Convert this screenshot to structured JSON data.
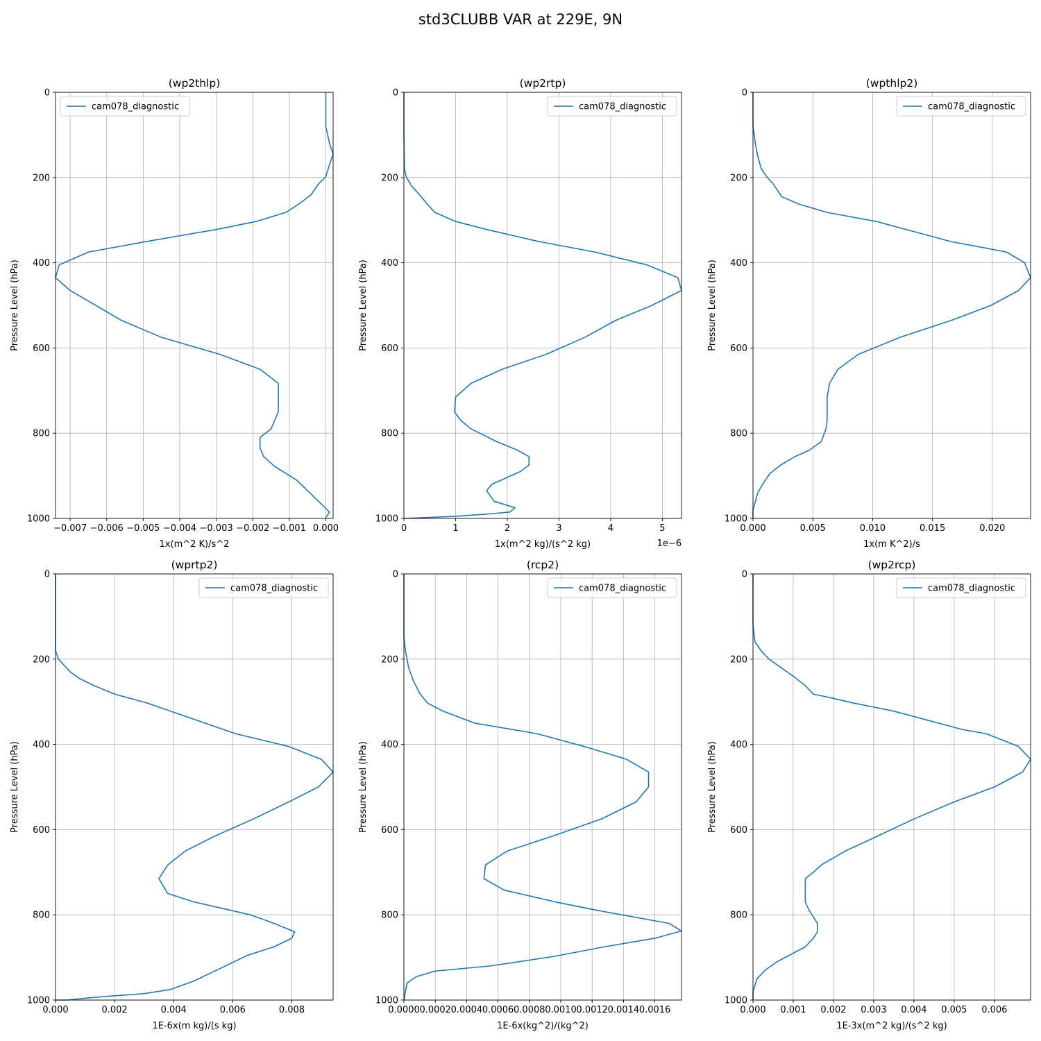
{
  "figure": {
    "title": "std3CLUBB VAR at 229E, 9N"
  },
  "chart_data": [
    {
      "type": "line",
      "title": "(wp2thlp)",
      "xlabel": "1x(m^2 K)/s^2",
      "ylabel": "Pressure Level (hPa)",
      "xlim": [
        -0.0074,
        0.0002
      ],
      "ylim": [
        1000,
        0
      ],
      "xticks": [
        -0.007,
        -0.006,
        -0.005,
        -0.004,
        -0.003,
        -0.002,
        -0.001,
        0.0
      ],
      "xticklabels": [
        "−0.007",
        "−0.006",
        "−0.005",
        "−0.004",
        "−0.003",
        "−0.002",
        "−0.001",
        "0.000"
      ],
      "yticks": [
        0,
        200,
        400,
        600,
        800,
        1000
      ],
      "yticklabels": [
        "0",
        "200",
        "400",
        "600",
        "800",
        "1000"
      ],
      "x_offset_label": "",
      "grid": true,
      "legend_position": "upper-left",
      "series": [
        {
          "name": "cam078_diagnostic",
          "color": "#1f77b4",
          "x": [
            0.0,
            0.0,
            0.0,
            0.0001,
            0.0002,
            0.0001,
            0.0,
            -0.0002,
            -0.0004,
            -0.0007,
            -0.0011,
            -0.0019,
            -0.003,
            -0.0049,
            -0.0065,
            -0.0073,
            -0.0074,
            -0.007,
            -0.0063,
            -0.0056,
            -0.0045,
            -0.0029,
            -0.0018,
            -0.0013,
            -0.0013,
            -0.0013,
            -0.0015,
            -0.0018,
            -0.0018,
            -0.0017,
            -0.0014,
            -0.0008,
            -0.0005,
            -0.0002,
            0.0001,
            0.0
          ],
          "y": [
            0,
            50,
            80,
            120,
            145,
            170,
            198,
            215,
            240,
            260,
            282,
            303,
            322,
            350,
            375,
            405,
            435,
            465,
            500,
            535,
            575,
            615,
            650,
            683,
            715,
            750,
            790,
            810,
            835,
            855,
            878,
            910,
            935,
            960,
            985,
            998
          ]
        }
      ]
    },
    {
      "type": "line",
      "title": "(wp2rtp)",
      "xlabel": "1x(m^2 kg)/(s^2 kg)",
      "ylabel": "Pressure Level (hPa)",
      "xlim": [
        0,
        5.37
      ],
      "ylim": [
        1000,
        0
      ],
      "xticks": [
        0,
        1,
        2,
        3,
        4,
        5
      ],
      "xticklabels": [
        "0",
        "1",
        "2",
        "3",
        "4",
        "5"
      ],
      "yticks": [
        0,
        200,
        400,
        600,
        800,
        1000
      ],
      "yticklabels": [
        "0",
        "200",
        "400",
        "600",
        "800",
        "1000"
      ],
      "x_offset_label": "1e−6",
      "grid": true,
      "legend_position": "upper-right",
      "series": [
        {
          "name": "cam078_diagnostic",
          "color": "#1f77b4",
          "x": [
            0.0,
            0.0,
            0.01,
            0.05,
            0.15,
            0.3,
            0.45,
            0.6,
            1.0,
            1.6,
            2.6,
            3.7,
            4.7,
            5.3,
            5.37,
            4.8,
            4.1,
            3.5,
            2.75,
            1.9,
            1.3,
            1.0,
            0.98,
            1.1,
            1.3,
            1.8,
            2.2,
            2.42,
            2.42,
            2.25,
            1.7,
            1.6,
            1.75,
            2.15,
            2.05,
            1.6,
            1.0,
            0.0
          ],
          "y": [
            0,
            100,
            180,
            200,
            220,
            240,
            262,
            282,
            303,
            322,
            350,
            375,
            405,
            435,
            465,
            500,
            535,
            575,
            615,
            650,
            683,
            715,
            750,
            770,
            790,
            820,
            840,
            855,
            875,
            890,
            920,
            935,
            960,
            975,
            985,
            990,
            995,
            1000
          ]
        }
      ]
    },
    {
      "type": "line",
      "title": "(wpthlp2)",
      "xlabel": "1x(m K^2)/s",
      "ylabel": "Pressure Level (hPa)",
      "xlim": [
        0,
        0.0232
      ],
      "ylim": [
        1000,
        0
      ],
      "xticks": [
        0.0,
        0.005,
        0.01,
        0.015,
        0.02
      ],
      "xticklabels": [
        "0.000",
        "0.005",
        "0.010",
        "0.015",
        "0.020"
      ],
      "yticks": [
        0,
        200,
        400,
        600,
        800,
        1000
      ],
      "yticklabels": [
        "0",
        "200",
        "400",
        "600",
        "800",
        "1000"
      ],
      "x_offset_label": "",
      "grid": true,
      "legend_position": "upper-right",
      "series": [
        {
          "name": "cam078_diagnostic",
          "color": "#1f77b4",
          "x": [
            0.0,
            0.0,
            0.0002,
            0.0004,
            0.0007,
            0.0012,
            0.0017,
            0.0024,
            0.0038,
            0.0062,
            0.0103,
            0.0165,
            0.0212,
            0.0227,
            0.0232,
            0.0222,
            0.0199,
            0.0166,
            0.0123,
            0.0088,
            0.0071,
            0.0064,
            0.0062,
            0.0062,
            0.0062,
            0.0061,
            0.0057,
            0.0047,
            0.0035,
            0.0023,
            0.0014,
            0.0008,
            0.0004,
            0.0002,
            0.0,
            0.0
          ],
          "y": [
            0,
            80,
            120,
            150,
            180,
            200,
            215,
            245,
            262,
            282,
            303,
            350,
            375,
            400,
            435,
            465,
            500,
            535,
            575,
            615,
            650,
            683,
            715,
            750,
            770,
            790,
            820,
            840,
            855,
            875,
            895,
            920,
            940,
            960,
            980,
            1000
          ]
        }
      ]
    },
    {
      "type": "line",
      "title": "(wprtp2)",
      "xlabel": "1E-6x(m kg)/(s kg)",
      "ylabel": "Pressure Level (hPa)",
      "xlim": [
        0,
        0.0094
      ],
      "ylim": [
        1000,
        0
      ],
      "xticks": [
        0.0,
        0.002,
        0.004,
        0.006,
        0.008
      ],
      "xticklabels": [
        "0.000",
        "0.002",
        "0.004",
        "0.006",
        "0.008"
      ],
      "yticks": [
        0,
        200,
        400,
        600,
        800,
        1000
      ],
      "yticklabels": [
        "0",
        "200",
        "400",
        "600",
        "800",
        "1000"
      ],
      "x_offset_label": "",
      "grid": true,
      "legend_position": "upper-right",
      "series": [
        {
          "name": "cam078_diagnostic",
          "color": "#1f77b4",
          "x": [
            0.0,
            0.0,
            0.0001,
            0.0003,
            0.0005,
            0.0008,
            0.0013,
            0.002,
            0.0031,
            0.0061,
            0.0079,
            0.009,
            0.0094,
            0.0089,
            0.0079,
            0.0067,
            0.0054,
            0.0044,
            0.0038,
            0.0035,
            0.0038,
            0.0047,
            0.0066,
            0.0074,
            0.0081,
            0.008,
            0.0074,
            0.0065,
            0.0059,
            0.0053,
            0.0047,
            0.0039,
            0.003,
            0.002,
            0.0011,
            0.0004,
            0.0
          ],
          "y": [
            0,
            180,
            200,
            215,
            230,
            245,
            262,
            282,
            303,
            375,
            405,
            435,
            465,
            500,
            535,
            575,
            615,
            650,
            683,
            715,
            750,
            770,
            800,
            820,
            840,
            855,
            875,
            895,
            915,
            935,
            955,
            975,
            985,
            990,
            995,
            1000,
            1000
          ]
        }
      ]
    },
    {
      "type": "line",
      "title": "(rcp2)",
      "xlabel": "1E-6x(kg^2)/(kg^2)",
      "ylabel": "Pressure Level (hPa)",
      "xlim": [
        0,
        0.00177
      ],
      "ylim": [
        1000,
        0
      ],
      "xticks": [
        0.0,
        0.0002,
        0.0004,
        0.0006,
        0.0008,
        0.001,
        0.0012,
        0.0014,
        0.0016
      ],
      "xticklabels": [
        "0.0000",
        "0.0002",
        "0.0004",
        "0.0006",
        "0.0008",
        "0.0010",
        "0.0012",
        "0.0014",
        "0.0016"
      ],
      "yticks": [
        0,
        200,
        400,
        600,
        800,
        1000
      ],
      "yticklabels": [
        "0",
        "200",
        "400",
        "600",
        "800",
        "1000"
      ],
      "x_offset_label": "",
      "grid": true,
      "legend_position": "upper-right",
      "series": [
        {
          "name": "cam078_diagnostic",
          "color": "#1f77b4",
          "x": [
            0.0,
            0.0,
            1e-05,
            3e-05,
            6e-05,
            0.0001,
            0.00015,
            0.00025,
            0.00045,
            0.00085,
            0.00115,
            0.00142,
            0.00156,
            0.00156,
            0.00148,
            0.00126,
            0.00095,
            0.00066,
            0.00052,
            0.00051,
            0.00064,
            0.00097,
            0.00124,
            0.00169,
            0.00177,
            0.0016,
            0.00128,
            0.00095,
            0.00055,
            0.0002,
            8e-05,
            2e-05,
            0.0
          ],
          "y": [
            0,
            150,
            180,
            220,
            250,
            280,
            303,
            322,
            350,
            375,
            405,
            435,
            465,
            500,
            535,
            575,
            615,
            650,
            683,
            715,
            742,
            770,
            790,
            820,
            838,
            855,
            875,
            898,
            920,
            932,
            945,
            960,
            1000
          ]
        }
      ]
    },
    {
      "type": "line",
      "title": "(wp2rcp)",
      "xlabel": "1E-3x(m^2 kg)/(s^2 kg)",
      "ylabel": "Pressure Level (hPa)",
      "xlim": [
        0,
        0.0069
      ],
      "ylim": [
        1000,
        0
      ],
      "xticks": [
        0.0,
        0.001,
        0.002,
        0.003,
        0.004,
        0.005,
        0.006
      ],
      "xticklabels": [
        "0.000",
        "0.001",
        "0.002",
        "0.003",
        "0.004",
        "0.005",
        "0.006"
      ],
      "yticks": [
        0,
        200,
        400,
        600,
        800,
        1000
      ],
      "yticklabels": [
        "0",
        "200",
        "400",
        "600",
        "800",
        "1000"
      ],
      "x_offset_label": "",
      "grid": true,
      "legend_position": "upper-right",
      "series": [
        {
          "name": "cam078_diagnostic",
          "color": "#1f77b4",
          "x": [
            0.0,
            0.0,
            5e-05,
            0.0002,
            0.0004,
            0.0007,
            0.001,
            0.0013,
            0.0015,
            0.0019,
            0.0025,
            0.0035,
            0.0052,
            0.0058,
            0.0066,
            0.0069,
            0.0067,
            0.006,
            0.005,
            0.004,
            0.0031,
            0.0023,
            0.0017,
            0.0015,
            0.0013,
            0.0013,
            0.0013,
            0.0014,
            0.0016,
            0.0016,
            0.0015,
            0.0013,
            0.0006,
            0.0003,
            0.0001,
            0.0,
            0.0
          ],
          "y": [
            0,
            120,
            160,
            180,
            200,
            220,
            240,
            262,
            282,
            290,
            303,
            322,
            365,
            375,
            405,
            435,
            465,
            500,
            535,
            575,
            615,
            650,
            683,
            700,
            715,
            750,
            770,
            790,
            820,
            840,
            855,
            875,
            910,
            930,
            950,
            980,
            1000
          ]
        }
      ]
    }
  ]
}
